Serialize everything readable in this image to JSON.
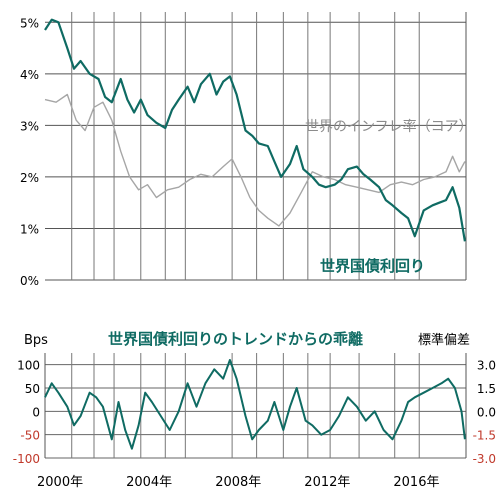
{
  "chart_data": [
    {
      "type": "line",
      "title": "",
      "xlabel": "",
      "ylabel": "",
      "ylim": [
        0,
        5.2
      ],
      "xlim": [
        2000,
        2018.9
      ],
      "y_tick_labels": [
        "0%",
        "1%",
        "2%",
        "3%",
        "4%",
        "5%"
      ],
      "y_tick_values": [
        0,
        1,
        2,
        3,
        4,
        5
      ],
      "grid": true,
      "colors": {
        "yield": "#0f6b63",
        "inflation": "#a6a6a6",
        "grid": "#555555",
        "recession_lines": "#777777"
      },
      "vertical_markers": [
        2001.2,
        2002.2,
        2003.1,
        2004.3,
        2005.4,
        2006.3,
        2008.4,
        2009.5,
        2010.7,
        2011.8,
        2012.8,
        2014.1,
        2015.7,
        2016.8
      ],
      "series": [
        {
          "name": "世界国債利回り",
          "x": [
            2000.0,
            2000.3,
            2000.6,
            2001.0,
            2001.3,
            2001.6,
            2002.0,
            2002.4,
            2002.7,
            2003.0,
            2003.4,
            2003.7,
            2004.0,
            2004.3,
            2004.6,
            2005.0,
            2005.4,
            2005.7,
            2006.0,
            2006.4,
            2006.7,
            2007.0,
            2007.4,
            2007.7,
            2008.0,
            2008.3,
            2008.6,
            2009.0,
            2009.3,
            2009.6,
            2010.0,
            2010.3,
            2010.6,
            2011.0,
            2011.3,
            2011.6,
            2012.0,
            2012.3,
            2012.6,
            2013.0,
            2013.3,
            2013.6,
            2014.0,
            2014.3,
            2014.6,
            2015.0,
            2015.3,
            2015.6,
            2016.0,
            2016.3,
            2016.6,
            2017.0,
            2017.4,
            2017.7,
            2018.0,
            2018.3,
            2018.6,
            2018.85
          ],
          "values": [
            4.85,
            5.05,
            5.0,
            4.5,
            4.1,
            4.25,
            4.0,
            3.9,
            3.55,
            3.45,
            3.9,
            3.5,
            3.25,
            3.5,
            3.2,
            3.05,
            2.95,
            3.3,
            3.5,
            3.75,
            3.45,
            3.8,
            4.0,
            3.6,
            3.85,
            3.95,
            3.6,
            2.9,
            2.8,
            2.65,
            2.6,
            2.3,
            2.0,
            2.25,
            2.6,
            2.15,
            2.0,
            1.85,
            1.8,
            1.85,
            1.95,
            2.15,
            2.2,
            2.05,
            1.95,
            1.8,
            1.55,
            1.45,
            1.3,
            1.2,
            0.85,
            1.35,
            1.45,
            1.5,
            1.55,
            1.8,
            1.4,
            0.75
          ]
        },
        {
          "name": "世界のインフレ率（コア）",
          "x": [
            2000.0,
            2000.5,
            2001.0,
            2001.4,
            2001.8,
            2002.2,
            2002.6,
            2003.0,
            2003.4,
            2003.8,
            2004.2,
            2004.6,
            2005.0,
            2005.5,
            2006.0,
            2006.5,
            2007.0,
            2007.5,
            2008.0,
            2008.4,
            2008.8,
            2009.2,
            2009.6,
            2010.0,
            2010.5,
            2011.0,
            2011.5,
            2012.0,
            2012.5,
            2013.0,
            2013.5,
            2014.0,
            2014.5,
            2015.0,
            2015.5,
            2016.0,
            2016.5,
            2017.0,
            2017.5,
            2018.0,
            2018.3,
            2018.6,
            2018.85
          ],
          "values": [
            3.5,
            3.45,
            3.6,
            3.1,
            2.9,
            3.35,
            3.45,
            3.1,
            2.5,
            2.0,
            1.75,
            1.85,
            1.6,
            1.75,
            1.8,
            1.95,
            2.05,
            2.0,
            2.2,
            2.35,
            2.0,
            1.6,
            1.35,
            1.2,
            1.05,
            1.3,
            1.7,
            2.1,
            2.0,
            1.95,
            1.85,
            1.8,
            1.75,
            1.7,
            1.85,
            1.9,
            1.85,
            1.95,
            2.0,
            2.1,
            2.4,
            2.1,
            2.3
          ]
        }
      ],
      "annotations": [
        "世界のインフレ率（コア）",
        "世界国債利回り"
      ]
    },
    {
      "type": "line",
      "title": "世界国債利回りのトレンドからの乖離",
      "xlabel": "",
      "ylabel": "Bps",
      "ylabel_right": "標準偏差",
      "ylim": [
        -100,
        125
      ],
      "xlim": [
        2000,
        2018.9
      ],
      "y_tick_labels": [
        "100",
        "50",
        "0",
        "-50",
        "-100"
      ],
      "y_tick_values": [
        100,
        50,
        0,
        -50,
        -100
      ],
      "y_tick_colors": [
        "#000000",
        "#000000",
        "#000000",
        "#c0392b",
        "#c0392b"
      ],
      "y2_tick_labels": [
        "3.0",
        "1.5",
        "0.0",
        "-1.5",
        "-3.0"
      ],
      "y2_tick_colors": [
        "#000000",
        "#000000",
        "#000000",
        "#c0392b",
        "#c0392b"
      ],
      "x_tick_labels": [
        "2000年",
        "2004年",
        "2008年",
        "2012年",
        "2016年"
      ],
      "x_tick_values": [
        2000,
        2004,
        2008,
        2012,
        2016
      ],
      "grid": true,
      "series": [
        {
          "name": "世界国債利回りのトレンドからの乖離",
          "x": [
            2000.0,
            2000.3,
            2000.6,
            2001.0,
            2001.3,
            2001.6,
            2002.0,
            2002.3,
            2002.6,
            2003.0,
            2003.3,
            2003.6,
            2003.9,
            2004.2,
            2004.5,
            2004.8,
            2005.2,
            2005.6,
            2006.0,
            2006.4,
            2006.8,
            2007.2,
            2007.6,
            2008.0,
            2008.3,
            2008.6,
            2009.0,
            2009.3,
            2009.6,
            2010.0,
            2010.3,
            2010.7,
            2011.0,
            2011.3,
            2011.7,
            2012.0,
            2012.4,
            2012.8,
            2013.2,
            2013.6,
            2014.0,
            2014.4,
            2014.8,
            2015.2,
            2015.6,
            2016.0,
            2016.3,
            2016.6,
            2017.0,
            2017.4,
            2017.8,
            2018.1,
            2018.4,
            2018.7,
            2018.85
          ],
          "values": [
            30,
            60,
            40,
            10,
            -30,
            -10,
            40,
            30,
            10,
            -60,
            20,
            -40,
            -80,
            -30,
            40,
            20,
            -10,
            -40,
            0,
            60,
            10,
            60,
            90,
            70,
            110,
            70,
            -10,
            -60,
            -40,
            -20,
            20,
            -40,
            10,
            50,
            -20,
            -30,
            -50,
            -40,
            -10,
            30,
            10,
            -20,
            0,
            -40,
            -60,
            -20,
            20,
            30,
            40,
            50,
            60,
            70,
            50,
            0,
            -60
          ]
        }
      ]
    }
  ]
}
